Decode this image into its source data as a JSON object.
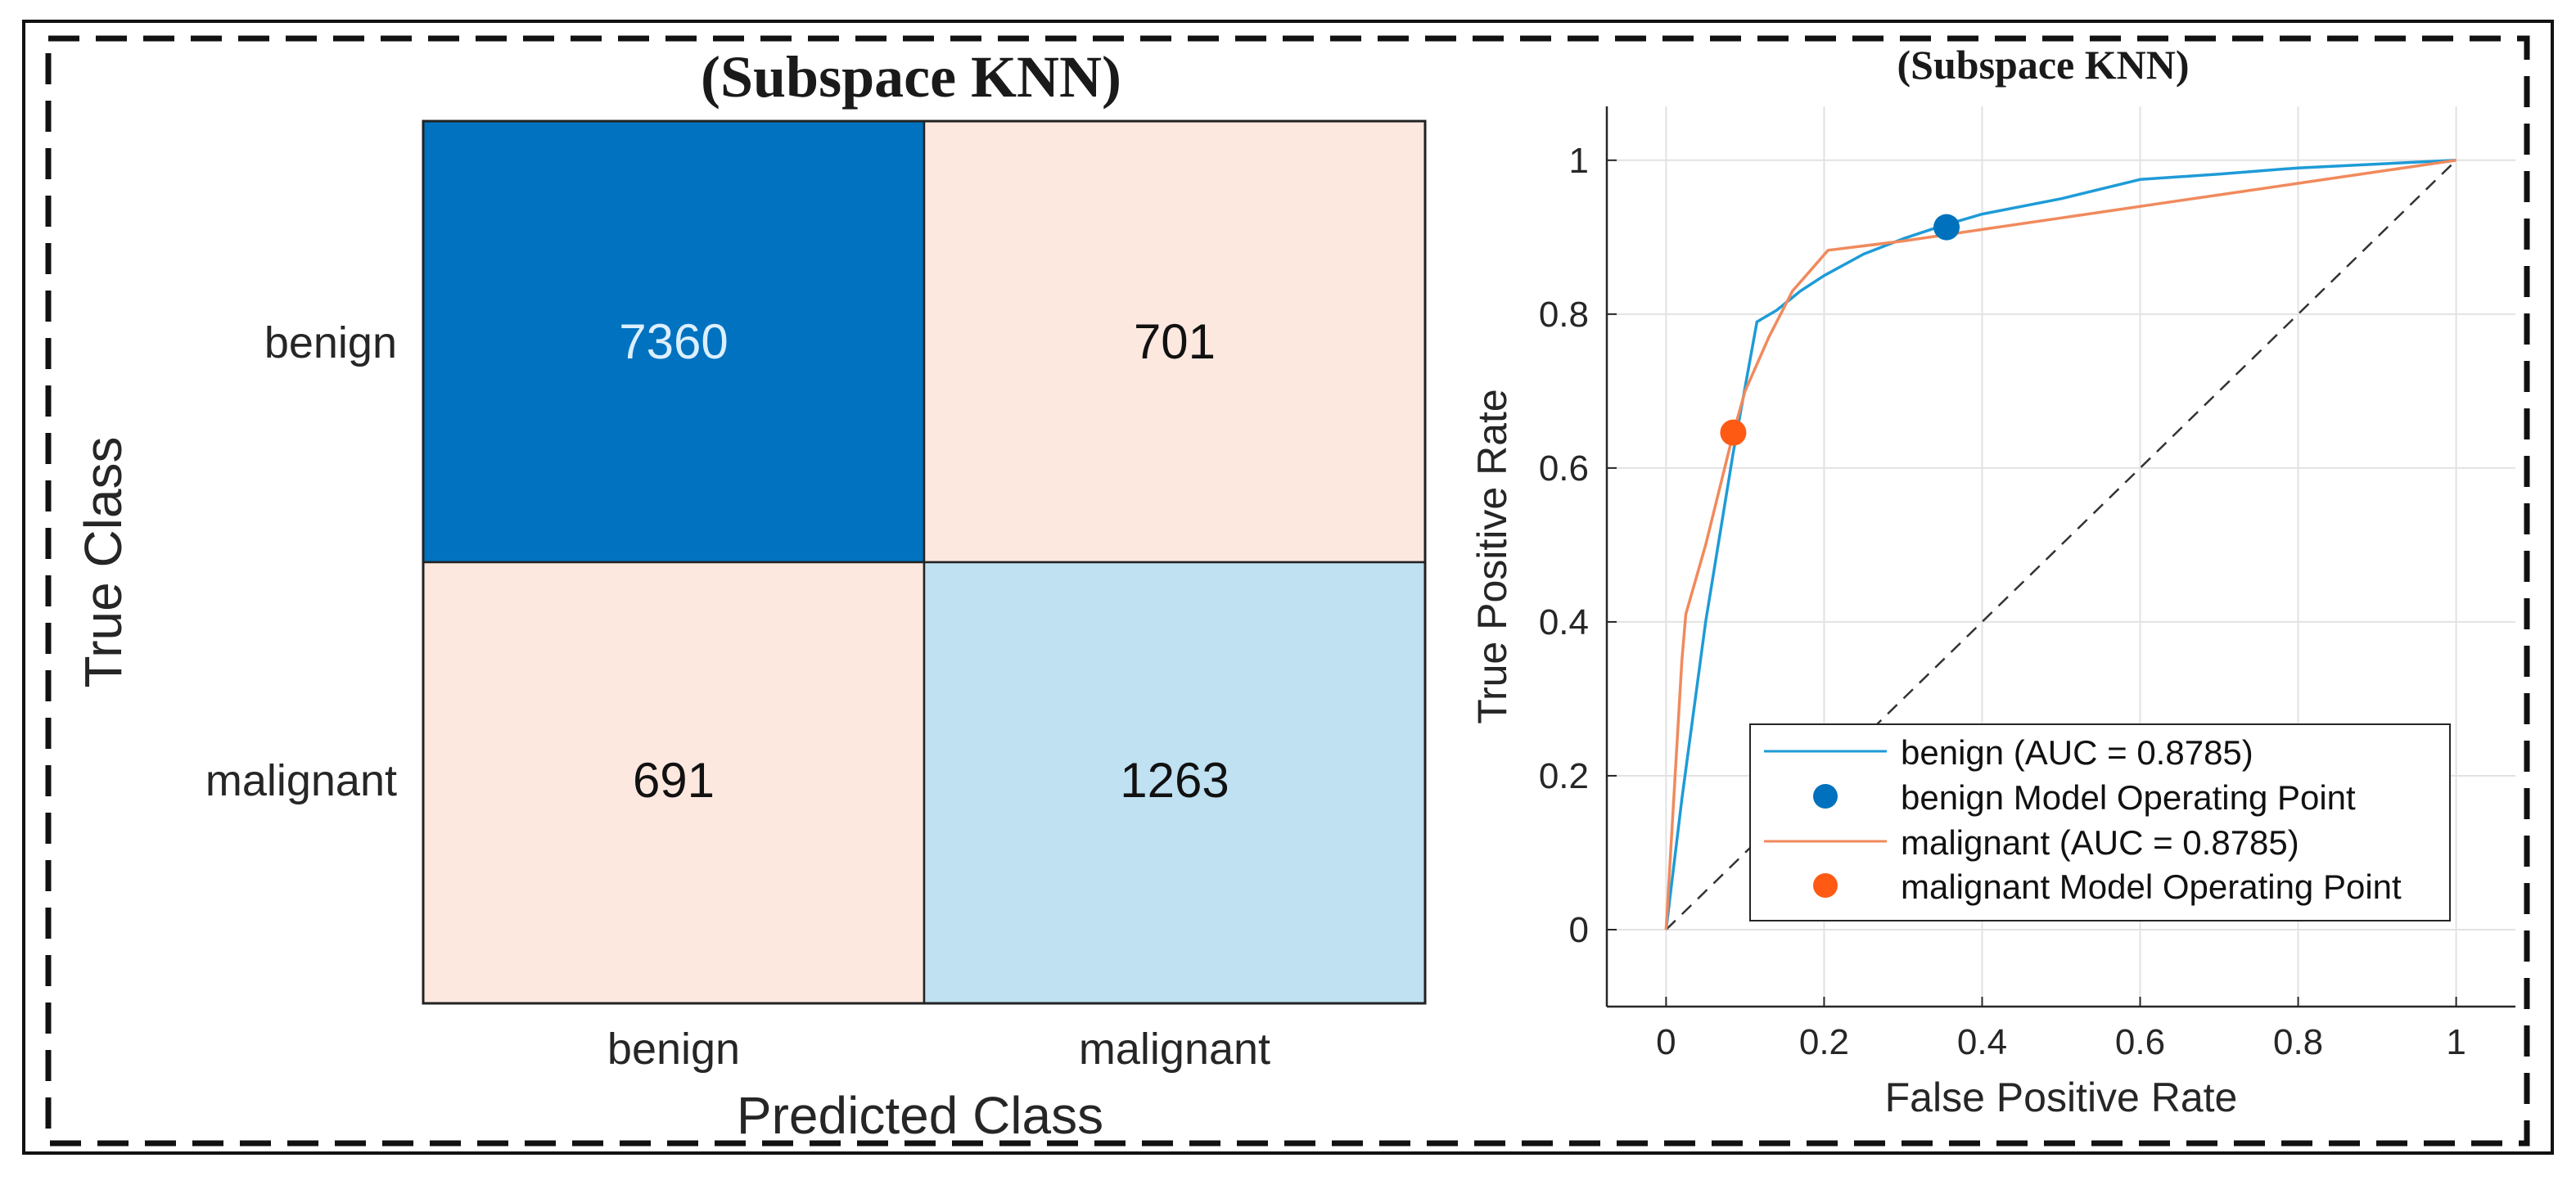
{
  "chart_data": [
    {
      "type": "heatmap",
      "title": "(Subspace KNN)",
      "xlabel": "Predicted Class",
      "ylabel": "True Class",
      "x_categories": [
        "benign",
        "malignant"
      ],
      "y_categories": [
        "benign",
        "malignant"
      ],
      "values": [
        [
          7360,
          701
        ],
        [
          691,
          1263
        ]
      ],
      "cell_colors": [
        [
          "#0072C0",
          "#FDE8E0"
        ],
        [
          "#FDE8E0",
          "#BFE1F2"
        ]
      ],
      "text_colors": [
        [
          "#DCEFFF",
          "#111111"
        ],
        [
          "#111111",
          "#111111"
        ]
      ]
    },
    {
      "type": "line",
      "title": "(Subspace KNN)",
      "xlabel": "False Positive Rate",
      "ylabel": "True Positive Rate",
      "xlim": [
        -0.075,
        1.075
      ],
      "ylim": [
        -0.1,
        1.07
      ],
      "xticks": [
        0,
        0.2,
        0.4,
        0.6,
        0.8,
        1
      ],
      "xtick_labels": [
        "0",
        "0.2",
        "0.4",
        "0.6",
        "0.8",
        "1"
      ],
      "yticks": [
        0,
        0.2,
        0.4,
        0.6,
        0.8,
        1
      ],
      "ytick_labels": [
        "0",
        "0.2",
        "0.4",
        "0.6",
        "0.8",
        "1"
      ],
      "grid": true,
      "legend_position": "bottom-right",
      "series": [
        {
          "name": "benign (AUC = 0.8785)",
          "kind": "line",
          "color": "#1E9BD7",
          "x": [
            0,
            0.02,
            0.05,
            0.085,
            0.115,
            0.14,
            0.17,
            0.2,
            0.25,
            0.3,
            0.35,
            0.4,
            0.5,
            0.6,
            0.7,
            0.8,
            0.9,
            1
          ],
          "y": [
            0,
            0.17,
            0.4,
            0.62,
            0.79,
            0.805,
            0.83,
            0.85,
            0.878,
            0.898,
            0.915,
            0.93,
            0.95,
            0.975,
            0.982,
            0.99,
            0.995,
            1
          ]
        },
        {
          "name": "benign Model Operating Point",
          "kind": "marker",
          "color": "#0072BD",
          "x": [
            0.355
          ],
          "y": [
            0.913
          ]
        },
        {
          "name": "malignant (AUC = 0.8785)",
          "kind": "line",
          "color": "#F08A5D",
          "x": [
            0,
            0.02,
            0.025,
            0.05,
            0.085,
            0.1,
            0.13,
            0.16,
            0.205,
            0.3,
            0.4,
            0.5,
            0.6,
            0.7,
            0.8,
            0.9,
            1
          ],
          "y": [
            0,
            0.35,
            0.41,
            0.5,
            0.645,
            0.7,
            0.77,
            0.83,
            0.883,
            0.895,
            0.91,
            0.925,
            0.94,
            0.955,
            0.97,
            0.985,
            1
          ]
        },
        {
          "name": "malignant Model Operating Point",
          "kind": "marker",
          "color": "#FF5A14",
          "x": [
            0.085
          ],
          "y": [
            0.646
          ]
        },
        {
          "name": "chance",
          "kind": "reference",
          "color": "#333333",
          "x": [
            0,
            1
          ],
          "y": [
            0,
            1
          ]
        }
      ]
    }
  ]
}
